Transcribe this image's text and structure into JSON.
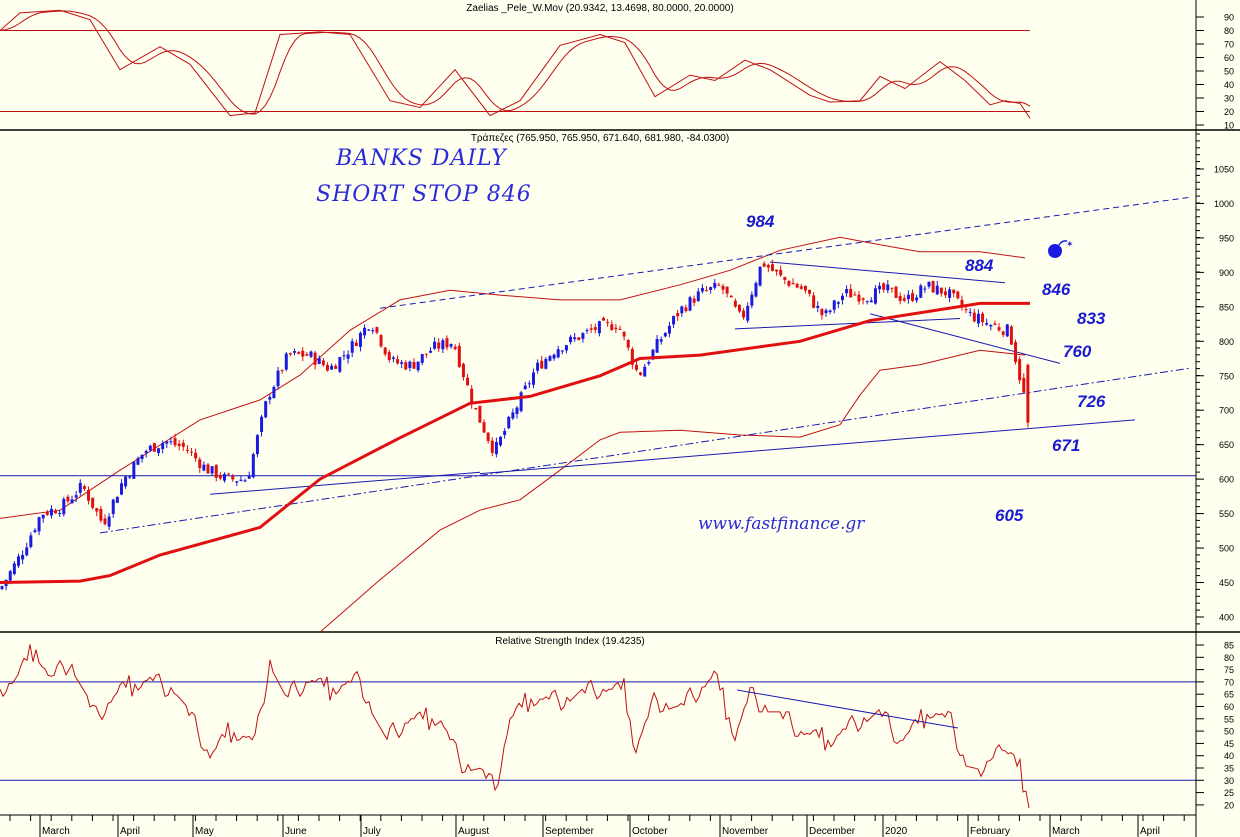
{
  "colors": {
    "background": "#fffff0",
    "up": "#1a1ae0",
    "down": "#e01010",
    "ma": "#e01010",
    "band": "#c01010",
    "trend": "#1a1ab0",
    "osc": "#c01010"
  },
  "panels": {
    "oscillator_title": "Zaelias _Pele_W.Mov (20.9342, 13.4698, 80.0000, 20.0000)",
    "price_title": "Τράπεζες (765.950, 765.950, 671.640, 681.980, -84.0300)",
    "rsi_title": "Relative Strength Index (19.4235)"
  },
  "annotations": {
    "title_line1": "BANKS DAILY",
    "title_line2": "SHORT STOP 846",
    "website": "www.fastfinance.gr",
    "levels": [
      "984",
      "884",
      "846",
      "833",
      "760",
      "726",
      "671",
      "605"
    ]
  },
  "chart_data": [
    {
      "type": "line",
      "name": "oscillator",
      "title": "Zaelias _Pele_W.Mov (20.9342, 13.4698, 80.0000, 20.0000)",
      "ylim": [
        5,
        97
      ],
      "yticks": [
        90,
        80,
        70,
        60,
        50,
        40,
        30,
        20,
        10
      ],
      "hlines": [
        80,
        20
      ],
      "series": [
        {
          "name": "fast",
          "points": [
            [
              0,
              80
            ],
            [
              20,
              93
            ],
            [
              60,
              95
            ],
            [
              90,
              88
            ],
            [
              120,
              51
            ],
            [
              160,
              68
            ],
            [
              190,
              55
            ],
            [
              230,
              17
            ],
            [
              255,
              19
            ],
            [
              280,
              77
            ],
            [
              320,
              79
            ],
            [
              350,
              77
            ],
            [
              390,
              28
            ],
            [
              420,
              23
            ],
            [
              455,
              51
            ],
            [
              490,
              17
            ],
            [
              520,
              28
            ],
            [
              560,
              69
            ],
            [
              600,
              77
            ],
            [
              625,
              71
            ],
            [
              655,
              31
            ],
            [
              690,
              47
            ],
            [
              715,
              43
            ],
            [
              745,
              58
            ],
            [
              770,
              51
            ],
            [
              810,
              32
            ],
            [
              830,
              27
            ],
            [
              860,
              28
            ],
            [
              880,
              46
            ],
            [
              905,
              37
            ],
            [
              940,
              57
            ],
            [
              965,
              43
            ],
            [
              990,
              25
            ],
            [
              1005,
              28
            ],
            [
              1020,
              26
            ],
            [
              1030,
              15
            ]
          ]
        }
      ]
    },
    {
      "type": "candlestick",
      "name": "price",
      "title": "Τράπεζες (765.950, 765.950, 671.640, 681.980, -84.0300)",
      "ylim": [
        380,
        1070
      ],
      "yticks": [
        1050,
        1000,
        950,
        900,
        850,
        800,
        750,
        700,
        650,
        600,
        550,
        500,
        450,
        400
      ],
      "weekly_closes": [
        440,
        490,
        550,
        560,
        590,
        535,
        600,
        640,
        655,
        645,
        615,
        600,
        600,
        720,
        780,
        780,
        760,
        790,
        830,
        770,
        765,
        790,
        800,
        705,
        640,
        700,
        760,
        790,
        805,
        820,
        825,
        750,
        800,
        845,
        870,
        880,
        830,
        915,
        890,
        875,
        835,
        870,
        865,
        875,
        860,
        880,
        870,
        840,
        825,
        815,
        682
      ],
      "last": {
        "open": 765.95,
        "high": 765.95,
        "low": 671.64,
        "close": 681.98,
        "change": -84.03
      },
      "moving_average": [
        [
          0,
          450
        ],
        [
          80,
          452
        ],
        [
          110,
          460
        ],
        [
          160,
          490
        ],
        [
          260,
          530
        ],
        [
          320,
          600
        ],
        [
          400,
          660
        ],
        [
          470,
          710
        ],
        [
          530,
          720
        ],
        [
          600,
          750
        ],
        [
          640,
          775
        ],
        [
          700,
          780
        ],
        [
          800,
          800
        ],
        [
          870,
          830
        ],
        [
          980,
          855
        ],
        [
          1030,
          855
        ]
      ],
      "upper_band": [
        [
          0,
          543
        ],
        [
          60,
          555
        ],
        [
          120,
          613
        ],
        [
          200,
          686
        ],
        [
          260,
          715
        ],
        [
          300,
          751
        ],
        [
          350,
          816
        ],
        [
          400,
          860
        ],
        [
          450,
          874
        ],
        [
          500,
          867
        ],
        [
          560,
          860
        ],
        [
          620,
          860
        ],
        [
          680,
          882
        ],
        [
          730,
          903
        ],
        [
          780,
          932
        ],
        [
          840,
          951
        ],
        [
          880,
          940
        ],
        [
          920,
          930
        ],
        [
          980,
          930
        ],
        [
          1025,
          921
        ]
      ],
      "lower_band": [
        [
          320,
          378
        ],
        [
          380,
          454
        ],
        [
          440,
          526
        ],
        [
          480,
          555
        ],
        [
          520,
          570
        ],
        [
          560,
          613
        ],
        [
          600,
          657
        ],
        [
          620,
          668
        ],
        [
          680,
          671
        ],
        [
          740,
          664
        ],
        [
          800,
          661
        ],
        [
          840,
          679
        ],
        [
          860,
          722
        ],
        [
          880,
          758
        ],
        [
          920,
          766
        ],
        [
          980,
          787
        ],
        [
          1025,
          780
        ]
      ],
      "horizontal_level": 605
    },
    {
      "type": "line",
      "name": "rsi",
      "title": "Relative Strength Index (19.4235)",
      "ylim": [
        16,
        88
      ],
      "yticks": [
        85,
        80,
        75,
        70,
        65,
        60,
        55,
        50,
        45,
        40,
        35,
        30,
        25,
        20
      ],
      "hlines": [
        70,
        30
      ],
      "series": [
        {
          "name": "RSI",
          "points": [
            [
              0,
              67
            ],
            [
              15,
              71
            ],
            [
              35,
              84
            ],
            [
              50,
              71
            ],
            [
              70,
              79
            ],
            [
              95,
              55
            ],
            [
              120,
              67
            ],
            [
              150,
              71
            ],
            [
              175,
              67
            ],
            [
              200,
              48
            ],
            [
              210,
              40
            ],
            [
              230,
              50
            ],
            [
              255,
              46
            ],
            [
              270,
              79
            ],
            [
              285,
              63
            ],
            [
              310,
              71
            ],
            [
              330,
              67
            ],
            [
              360,
              71
            ],
            [
              385,
              46
            ],
            [
              410,
              55
            ],
            [
              440,
              55
            ],
            [
              460,
              38
            ],
            [
              480,
              34
            ],
            [
              495,
              26
            ],
            [
              510,
              55
            ],
            [
              530,
              63
            ],
            [
              560,
              63
            ],
            [
              600,
              67
            ],
            [
              625,
              67
            ],
            [
              635,
              42
            ],
            [
              655,
              63
            ],
            [
              680,
              59
            ],
            [
              715,
              73
            ],
            [
              735,
              48
            ],
            [
              750,
              65
            ],
            [
              770,
              59
            ],
            [
              800,
              50
            ],
            [
              830,
              46
            ],
            [
              860,
              55
            ],
            [
              880,
              57
            ],
            [
              900,
              46
            ],
            [
              930,
              58
            ],
            [
              950,
              55
            ],
            [
              965,
              38
            ],
            [
              985,
              30
            ],
            [
              995,
              46
            ],
            [
              1010,
              40
            ],
            [
              1020,
              34
            ],
            [
              1030,
              20
            ]
          ]
        }
      ],
      "latest": 19.4235
    }
  ],
  "x_axis": {
    "labels": [
      "March",
      "April",
      "May",
      "June",
      "July",
      "August",
      "September",
      "October",
      "November",
      "December",
      "2020",
      "February",
      "March",
      "April"
    ]
  }
}
